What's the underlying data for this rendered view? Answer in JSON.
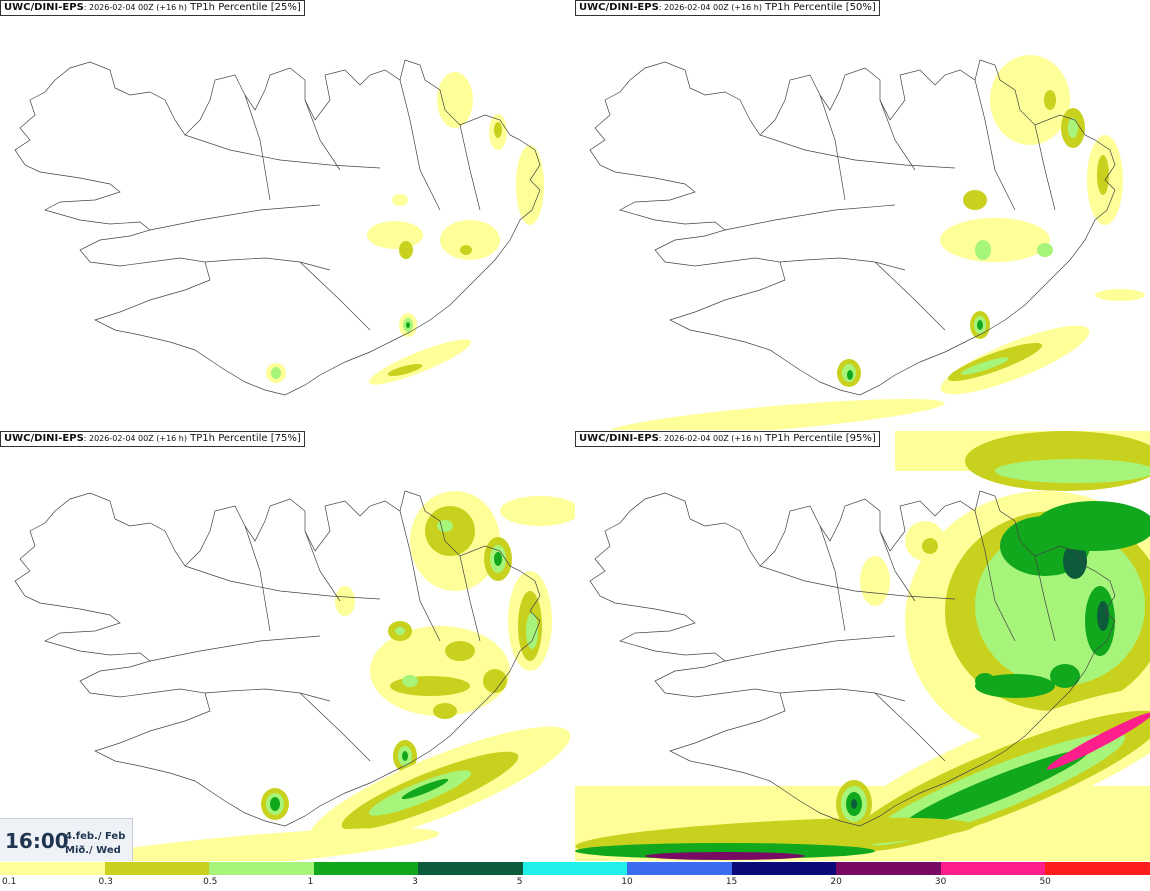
{
  "panels": [
    {
      "source": "UWC/DINI-EPS",
      "run": ": 2026-02-04 00Z (+16 h)",
      "field": "TP1h Percentile [25%]"
    },
    {
      "source": "UWC/DINI-EPS",
      "run": ": 2026-02-04 00Z (+16 h)",
      "field": "TP1h Percentile [50%]"
    },
    {
      "source": "UWC/DINI-EPS",
      "run": ": 2026-02-04 00Z (+16 h)",
      "field": "TP1h Percentile [75%]"
    },
    {
      "source": "UWC/DINI-EPS",
      "run": ": 2026-02-04 00Z (+16 h)",
      "field": "TP1h Percentile [95%]"
    }
  ],
  "valid_time": {
    "time": "16:00",
    "date_line1": "4.feb./ Feb",
    "date_line2": "Mið./ Wed"
  },
  "colorbar": {
    "labels": [
      "0.1",
      "0.3",
      "0.5",
      "1",
      "3",
      "5",
      "10",
      "15",
      "20",
      "30",
      "50"
    ],
    "colors": [
      "#ffff99",
      "#c8d21e",
      "#a6f57a",
      "#11a81e",
      "#0c5c3c",
      "#20f0e8",
      "#3c6cf0",
      "#0a0a78",
      "#780a64",
      "#ff1e8c",
      "#ff1e1e"
    ]
  }
}
